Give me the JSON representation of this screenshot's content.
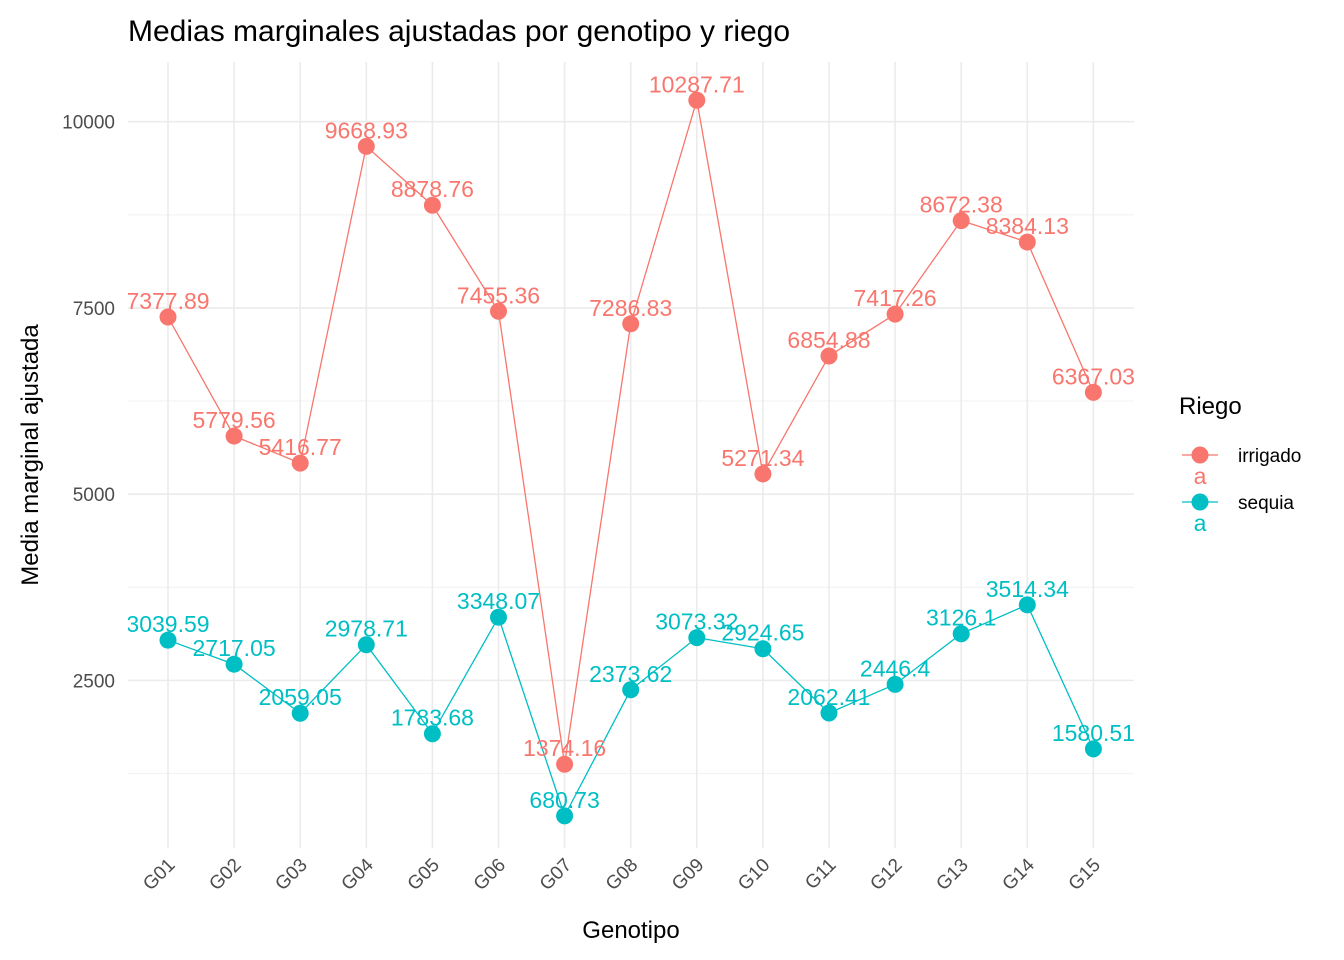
{
  "chart_data": {
    "type": "line",
    "title": "Medias marginales ajustadas por genotipo y riego",
    "xlabel": "Genotipo",
    "ylabel": "Media marginal ajustada",
    "categories": [
      "G01",
      "G02",
      "G03",
      "G04",
      "G05",
      "G06",
      "G07",
      "G08",
      "G09",
      "G10",
      "G11",
      "G12",
      "G13",
      "G14",
      "G15"
    ],
    "ylim": [
      0,
      10950
    ],
    "yticks": [
      2500,
      5000,
      7500,
      10000
    ],
    "grid": true,
    "legend": {
      "title": "Riego",
      "position": "right",
      "key_glyph_text": "a"
    },
    "series": [
      {
        "name": "irrigado",
        "color": "#F8766D",
        "values": [
          7377.89,
          5779.56,
          5416.77,
          9668.93,
          8878.76,
          7455.36,
          1374.16,
          7286.83,
          10287.71,
          5271.34,
          6854.88,
          7417.26,
          8672.38,
          8384.13,
          6367.03
        ],
        "labels": [
          "7377.89",
          "5779.56",
          "5416.77",
          "9668.93",
          "8878.76",
          "7455.36",
          "1374.16",
          "7286.83",
          "10287.71",
          "5271.34",
          "6854.88",
          "7417.26",
          "8672.38",
          "8384.13",
          "6367.03"
        ]
      },
      {
        "name": "sequia",
        "color": "#00BFC4",
        "values": [
          3039.59,
          2717.05,
          2059.05,
          2978.71,
          1783.68,
          3348.07,
          680.73,
          2373.62,
          3073.32,
          2924.65,
          2062.41,
          2446.4,
          3126.1,
          3514.34,
          1580.51
        ],
        "labels": [
          "3039.59",
          "2717.05",
          "2059.05",
          "2978.71",
          "1783.68",
          "3348.07",
          "680.73",
          "2373.62",
          "3073.32",
          "2924.65",
          "2062.41",
          "2446.4",
          "3126.1",
          "3514.34",
          "1580.51"
        ]
      }
    ]
  }
}
